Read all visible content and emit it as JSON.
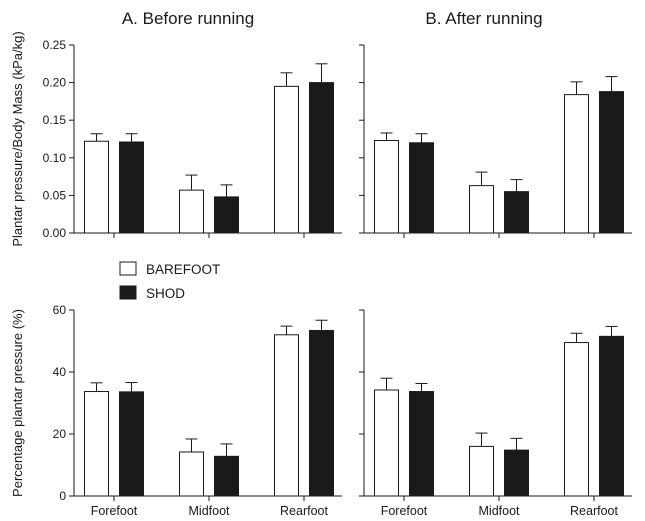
{
  "chart_data": [
    {
      "type": "bar",
      "title": "A. Before running",
      "ylabel": "Plantar pressure/Body Mass (kPa/kg)",
      "categories": [
        "Forefoot",
        "Midfoot",
        "Rearfoot"
      ],
      "ylim": [
        0,
        0.25
      ],
      "yticks": [
        0.0,
        0.05,
        0.1,
        0.15,
        0.2,
        0.25
      ],
      "ytick_labels": [
        "0.00",
        "0.05",
        "0.10",
        "0.15",
        "0.20",
        "0.25"
      ],
      "show_category_labels": false,
      "series": [
        {
          "name": "BAREFOOT",
          "color": "#ffffff",
          "values": [
            0.122,
            0.057,
            0.195
          ],
          "errors": [
            0.01,
            0.02,
            0.018
          ]
        },
        {
          "name": "SHOD",
          "color": "#1a1a1a",
          "values": [
            0.121,
            0.048,
            0.2
          ],
          "errors": [
            0.011,
            0.016,
            0.025
          ]
        }
      ]
    },
    {
      "type": "bar",
      "title": "B. After running",
      "ylabel": "",
      "categories": [
        "Forefoot",
        "Midfoot",
        "Rearfoot"
      ],
      "ylim": [
        0,
        0.25
      ],
      "yticks": [],
      "ytick_labels": [],
      "show_category_labels": false,
      "series": [
        {
          "name": "BAREFOOT",
          "color": "#ffffff",
          "values": [
            0.123,
            0.063,
            0.184
          ],
          "errors": [
            0.01,
            0.018,
            0.017
          ]
        },
        {
          "name": "SHOD",
          "color": "#1a1a1a",
          "values": [
            0.12,
            0.055,
            0.188
          ],
          "errors": [
            0.012,
            0.016,
            0.02
          ]
        }
      ]
    },
    {
      "type": "bar",
      "title": "",
      "ylabel": "Percentage plantar pressure (%)",
      "categories": [
        "Forefoot",
        "Midfoot",
        "Rearfoot"
      ],
      "ylim": [
        0,
        60
      ],
      "yticks": [
        0,
        20,
        40,
        60
      ],
      "ytick_labels": [
        "0",
        "20",
        "40",
        "60"
      ],
      "show_category_labels": true,
      "series": [
        {
          "name": "BAREFOOT",
          "color": "#ffffff",
          "values": [
            33.7,
            14.2,
            52.0
          ],
          "errors": [
            2.8,
            4.2,
            2.8
          ]
        },
        {
          "name": "SHOD",
          "color": "#1a1a1a",
          "values": [
            33.6,
            12.8,
            53.4
          ],
          "errors": [
            3.0,
            4.0,
            3.3
          ]
        }
      ]
    },
    {
      "type": "bar",
      "title": "",
      "ylabel": "",
      "categories": [
        "Forefoot",
        "Midfoot",
        "Rearfoot"
      ],
      "ylim": [
        0,
        60
      ],
      "yticks": [],
      "ytick_labels": [],
      "show_category_labels": true,
      "series": [
        {
          "name": "BAREFOOT",
          "color": "#ffffff",
          "values": [
            34.2,
            16.0,
            49.5
          ],
          "errors": [
            3.8,
            4.3,
            3.0
          ]
        },
        {
          "name": "SHOD",
          "color": "#1a1a1a",
          "values": [
            33.7,
            14.8,
            51.5
          ],
          "errors": [
            2.6,
            3.8,
            3.2
          ]
        }
      ]
    }
  ],
  "legend": {
    "placement": "upper-left of lower-left panel",
    "items": [
      {
        "label": "BAREFOOT",
        "color": "#ffffff"
      },
      {
        "label": "SHOD",
        "color": "#1a1a1a"
      }
    ]
  }
}
